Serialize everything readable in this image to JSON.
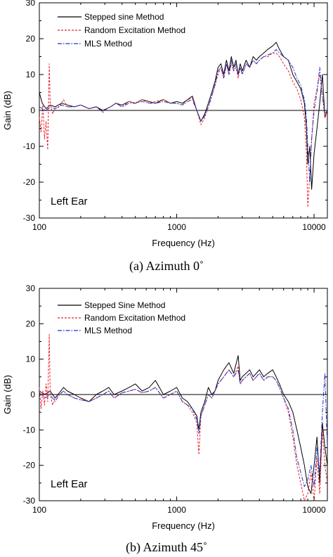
{
  "chart_data": [
    {
      "type": "line",
      "caption": "(a)  Azimuth  0˚",
      "annotation": "Left Ear",
      "xlabel": "Frequency (Hz)",
      "ylabel": "Gain (dB)",
      "xscale": "log",
      "xlim": [
        100,
        12500
      ],
      "ylim": [
        -30,
        30
      ],
      "xticks": [
        100,
        1000,
        10000
      ],
      "xtick_labels": [
        "100",
        "1000",
        "10000"
      ],
      "yticks": [
        -30,
        -20,
        -10,
        0,
        10,
        20,
        30
      ],
      "ytick_labels": [
        "-30",
        "-20",
        "-10",
        "0",
        "10",
        "20",
        "30"
      ],
      "grid": false,
      "zero_line": true,
      "legend_position": "top-left",
      "series": [
        {
          "name": "Stepped sine Method",
          "color": "#000000",
          "dash": "solid",
          "x": [
            100,
            105,
            112,
            120,
            130,
            145,
            160,
            180,
            200,
            230,
            260,
            290,
            310,
            330,
            360,
            400,
            450,
            500,
            560,
            630,
            700,
            800,
            900,
            1000,
            1100,
            1200,
            1300,
            1400,
            1500,
            1600,
            1700,
            1800,
            1900,
            2000,
            2100,
            2200,
            2300,
            2400,
            2500,
            2600,
            2700,
            2800,
            2900,
            3000,
            3200,
            3400,
            3600,
            3800,
            4000,
            4300,
            4600,
            5000,
            5300,
            5600,
            6000,
            6500,
            7000,
            7500,
            8000,
            8500,
            8800,
            9000,
            9300,
            9600,
            10000,
            10500,
            11000,
            11500,
            12000,
            12500
          ],
          "y": [
            5,
            2,
            0.5,
            1.5,
            1,
            2,
            1.5,
            1,
            1.5,
            0.5,
            1,
            0,
            0.5,
            1,
            2,
            1.5,
            2.5,
            2,
            3,
            2.5,
            2,
            3,
            2,
            2.5,
            2,
            3,
            4,
            0,
            -3,
            -1,
            2,
            5,
            8,
            12,
            13,
            10,
            14,
            11,
            15,
            12,
            14,
            10,
            13,
            11,
            14,
            12,
            15,
            14,
            15,
            16,
            17,
            18,
            19,
            17,
            15,
            14,
            10,
            8,
            6,
            2,
            -5,
            -15,
            -10,
            -22,
            -12,
            -5,
            2,
            10,
            -2,
            0
          ]
        },
        {
          "name": "Random Excitation Method",
          "color": "#e8202a",
          "dash": "dashed",
          "x": [
            100,
            103,
            106,
            109,
            112,
            115,
            118,
            120,
            125,
            130,
            140,
            150,
            160,
            180,
            200,
            230,
            260,
            290,
            310,
            330,
            360,
            400,
            450,
            500,
            560,
            630,
            700,
            800,
            900,
            1000,
            1100,
            1200,
            1300,
            1400,
            1500,
            1600,
            1700,
            1800,
            1900,
            2000,
            2100,
            2200,
            2300,
            2400,
            2500,
            2600,
            2700,
            2800,
            2900,
            3000,
            3200,
            3400,
            3600,
            3800,
            4000,
            4300,
            4600,
            5000,
            5300,
            5600,
            6000,
            6500,
            7000,
            7500,
            8000,
            8500,
            8800,
            9000,
            9300,
            9600,
            10000,
            10500,
            11000,
            11500,
            12000,
            12500
          ],
          "y": [
            -2,
            -6,
            2,
            -8,
            -3,
            -11,
            13,
            2,
            -1,
            0.5,
            1,
            3,
            1,
            1,
            1.5,
            0.5,
            1,
            -0.5,
            0.5,
            1,
            2,
            1,
            2.5,
            2,
            3,
            2,
            2.5,
            3,
            2,
            2,
            1.5,
            3,
            3.5,
            0,
            -4,
            -2,
            1,
            4,
            7,
            10,
            12,
            9,
            13,
            10,
            13,
            11,
            12,
            9,
            12,
            10,
            13,
            12,
            14,
            13,
            14,
            15,
            15,
            16,
            16,
            15,
            13,
            11,
            8,
            6,
            3,
            -2,
            -12,
            -27,
            -18,
            -8,
            2,
            6,
            10,
            4,
            -2,
            0
          ]
        },
        {
          "name": "MLS Method",
          "color": "#2030c8",
          "dash": "dashdot",
          "x": [
            100,
            105,
            112,
            120,
            130,
            145,
            160,
            180,
            200,
            230,
            260,
            290,
            310,
            330,
            360,
            400,
            450,
            500,
            560,
            630,
            700,
            800,
            900,
            1000,
            1100,
            1200,
            1300,
            1400,
            1500,
            1600,
            1700,
            1800,
            1900,
            2000,
            2100,
            2200,
            2300,
            2400,
            2500,
            2600,
            2700,
            2800,
            2900,
            3000,
            3200,
            3400,
            3600,
            3800,
            4000,
            4300,
            4600,
            5000,
            5300,
            5600,
            6000,
            6500,
            7000,
            7500,
            8000,
            8500,
            8800,
            9000,
            9300,
            9600,
            10000,
            10500,
            11000,
            11500,
            12000,
            12500
          ],
          "y": [
            1,
            0.5,
            0,
            1,
            0.5,
            1.5,
            1,
            1,
            1.5,
            0.5,
            1,
            -0.5,
            0.5,
            1,
            2,
            1,
            2,
            2,
            2.5,
            2,
            2,
            2.5,
            2,
            2,
            1.5,
            2.5,
            3,
            0,
            -3,
            -1.5,
            1,
            4,
            7,
            11,
            12,
            9,
            13,
            10,
            14,
            11,
            13,
            10,
            12,
            10,
            13,
            12,
            14,
            13,
            14,
            15,
            15.5,
            16,
            17,
            16,
            15,
            14,
            12,
            9,
            7,
            3,
            -2,
            -10,
            -20,
            -8,
            0,
            5,
            12,
            4,
            -1,
            0
          ]
        }
      ]
    },
    {
      "type": "line",
      "caption": "(b)  Azimuth  45˚",
      "annotation": "Left Ear",
      "xlabel": "Frequency (Hz)",
      "ylabel": "Gain (dB)",
      "xscale": "log",
      "xlim": [
        100,
        12500
      ],
      "ylim": [
        -30,
        30
      ],
      "xticks": [
        100,
        1000,
        10000
      ],
      "xtick_labels": [
        "100",
        "1000",
        "10000"
      ],
      "yticks": [
        -30,
        -20,
        -10,
        0,
        10,
        20,
        30
      ],
      "ytick_labels": [
        "-30",
        "-20",
        "-10",
        "0",
        "10",
        "20",
        "30"
      ],
      "grid": false,
      "zero_line": true,
      "legend_position": "top-left",
      "series": [
        {
          "name": "Stepped Sine Method",
          "color": "#000000",
          "dash": "solid",
          "x": [
            100,
            110,
            120,
            130,
            140,
            150,
            160,
            180,
            200,
            230,
            260,
            290,
            320,
            350,
            400,
            450,
            500,
            560,
            630,
            700,
            800,
            900,
            1000,
            1100,
            1200,
            1300,
            1400,
            1450,
            1500,
            1600,
            1700,
            1800,
            1900,
            2000,
            2200,
            2400,
            2600,
            2800,
            2900,
            3000,
            3200,
            3400,
            3600,
            3800,
            4000,
            4300,
            4600,
            5000,
            5300,
            5600,
            6000,
            6500,
            7000,
            7500,
            8000,
            8500,
            9000,
            9500,
            10000,
            10500,
            11000,
            11500,
            12000,
            12500
          ],
          "y": [
            1,
            0,
            1,
            -1,
            0.5,
            2,
            1,
            0,
            -1,
            -2,
            0,
            1,
            2,
            0,
            1,
            2,
            3,
            1,
            2,
            4,
            0,
            1,
            2,
            -1,
            -2,
            -4,
            -6,
            -10,
            -5,
            -2,
            2,
            0,
            1,
            4,
            7,
            9,
            6,
            11,
            4,
            5,
            6,
            7,
            5,
            6,
            7,
            5,
            6,
            7,
            5,
            3,
            0,
            -2,
            -5,
            -10,
            -15,
            -20,
            -26,
            -28,
            -20,
            -12,
            -25,
            -8,
            -15,
            -20
          ]
        },
        {
          "name": "Random Excitation Method",
          "color": "#e8202a",
          "dash": "dashed",
          "x": [
            100,
            103,
            106,
            109,
            112,
            115,
            118,
            120,
            125,
            130,
            140,
            150,
            160,
            180,
            200,
            230,
            260,
            290,
            320,
            350,
            400,
            450,
            500,
            560,
            630,
            700,
            800,
            900,
            1000,
            1100,
            1200,
            1300,
            1400,
            1450,
            1500,
            1600,
            1700,
            1800,
            1900,
            2000,
            2200,
            2400,
            2600,
            2800,
            2900,
            3000,
            3200,
            3400,
            3600,
            3800,
            4000,
            4300,
            4600,
            5000,
            5300,
            5600,
            6000,
            6500,
            7000,
            7500,
            8000,
            8500,
            9000,
            9500,
            10000,
            10500,
            11000,
            11500,
            12000,
            12500
          ],
          "y": [
            2,
            -4,
            1,
            -3,
            3,
            -2,
            17,
            0,
            -3,
            -1,
            0,
            1,
            0,
            -1,
            -1.5,
            -2,
            -1,
            0,
            1,
            -1,
            0.5,
            1,
            1.5,
            0.5,
            1,
            2,
            -1,
            0,
            1,
            -2,
            -3,
            -5,
            -8,
            -17,
            -6,
            -3,
            0,
            -1,
            1,
            3,
            5,
            7,
            5,
            8,
            3,
            4,
            5,
            6,
            4,
            5,
            6,
            4,
            5,
            5,
            4,
            2,
            -1,
            -5,
            -12,
            -20,
            -25,
            -30,
            -28,
            -22,
            -30,
            -18,
            -28,
            -10,
            -20,
            -25
          ]
        },
        {
          "name": "MLS Method",
          "color": "#2030c8",
          "dash": "dashdot",
          "x": [
            100,
            110,
            120,
            130,
            140,
            150,
            160,
            180,
            200,
            230,
            260,
            290,
            320,
            350,
            400,
            450,
            500,
            560,
            630,
            700,
            800,
            900,
            1000,
            1100,
            1200,
            1300,
            1400,
            1450,
            1500,
            1600,
            1700,
            1800,
            1900,
            2000,
            2200,
            2400,
            2600,
            2800,
            2900,
            3000,
            3200,
            3400,
            3600,
            3800,
            4000,
            4300,
            4600,
            5000,
            5300,
            5600,
            6000,
            6500,
            7000,
            7500,
            8000,
            8500,
            9000,
            9500,
            10000,
            10500,
            11000,
            11500,
            12000,
            12500
          ],
          "y": [
            0.5,
            -1,
            0,
            -2,
            0,
            1,
            0,
            -1,
            -1.5,
            -2,
            -1,
            0,
            1,
            -1,
            0.5,
            1,
            1.5,
            0.5,
            1,
            2,
            -1,
            0,
            1,
            -2,
            -3,
            -4,
            -7,
            -11,
            -6,
            -3,
            0,
            -1,
            1,
            3,
            5,
            7,
            5,
            7,
            3,
            4,
            5,
            6,
            4,
            5,
            6,
            4,
            5,
            5,
            4,
            2,
            -1,
            -4,
            -10,
            -18,
            -22,
            -26,
            -24,
            -20,
            -26,
            -15,
            -22,
            -5,
            6,
            -15
          ]
        }
      ]
    }
  ]
}
